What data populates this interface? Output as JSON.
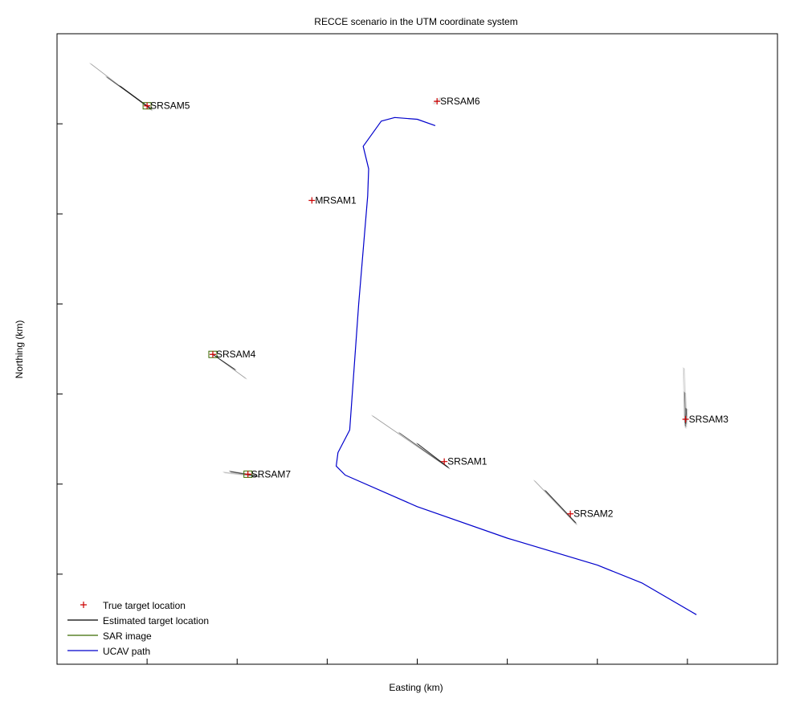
{
  "chart_data": {
    "type": "scatter",
    "title": "RECCE scenario in the UTM coordinate system",
    "xlabel": "Easting (km)",
    "ylabel": "Northing (km)",
    "xlim": [
      0,
      8
    ],
    "ylim": [
      0,
      7
    ],
    "grid": false,
    "tick_labels_shown": false,
    "legend_placement": "bottom-left",
    "legend": [
      {
        "key": "true",
        "label": "True target location",
        "color": "#cc0000",
        "marker": "+"
      },
      {
        "key": "est",
        "label": "Estimated target location",
        "color": "#000000",
        "marker": "line"
      },
      {
        "key": "sar",
        "label": "SAR image",
        "color": "#3a6a00",
        "marker": "line"
      },
      {
        "key": "ucav",
        "label": "UCAV path",
        "color": "#0000cc",
        "marker": "line"
      }
    ],
    "targets": [
      {
        "name": "SRSAM5",
        "x": 1.0,
        "y": 6.2,
        "sar": true,
        "streaks": [
          [
            [
              -0.63,
              0.47
            ],
            [
              0.05,
              -0.05
            ]
          ],
          [
            [
              -0.45,
              0.32
            ],
            [
              0.05,
              -0.04
            ]
          ],
          [
            [
              -0.3,
              0.22
            ],
            [
              0.04,
              -0.03
            ]
          ]
        ]
      },
      {
        "name": "SRSAM6",
        "x": 4.22,
        "y": 6.25,
        "sar": false,
        "streaks": [
          [
            [
              0.05,
              0.04
            ],
            [
              -0.04,
              -0.03
            ]
          ]
        ]
      },
      {
        "name": "MRSAM1",
        "x": 2.83,
        "y": 5.15,
        "sar": false,
        "streaks": []
      },
      {
        "name": "SRSAM4",
        "x": 1.73,
        "y": 3.44,
        "sar": true,
        "streaks": [
          [
            [
              0.0,
              0.0
            ],
            [
              0.37,
              -0.27
            ]
          ],
          [
            [
              0.0,
              0.0
            ],
            [
              0.25,
              -0.17
            ]
          ]
        ]
      },
      {
        "name": "SRSAM7",
        "x": 2.12,
        "y": 2.11,
        "sar": true,
        "streaks": [
          [
            [
              -0.27,
              0.02
            ],
            [
              0.15,
              -0.03
            ]
          ],
          [
            [
              -0.2,
              0.03
            ],
            [
              0.1,
              -0.02
            ]
          ]
        ]
      },
      {
        "name": "SRSAM1",
        "x": 4.3,
        "y": 2.25,
        "sar": false,
        "streaks": [
          [
            [
              -0.8,
              0.51
            ],
            [
              0.06,
              -0.08
            ]
          ],
          [
            [
              -0.5,
              0.32
            ],
            [
              0.05,
              -0.07
            ]
          ],
          [
            [
              -0.3,
              0.2
            ],
            [
              0.04,
              -0.06
            ]
          ]
        ]
      },
      {
        "name": "SRSAM2",
        "x": 5.7,
        "y": 1.67,
        "sar": false,
        "streaks": [
          [
            [
              -0.4,
              0.37
            ],
            [
              0.07,
              -0.12
            ]
          ],
          [
            [
              -0.28,
              0.26
            ],
            [
              0.06,
              -0.1
            ]
          ]
        ]
      },
      {
        "name": "SRSAM3",
        "x": 6.98,
        "y": 2.72,
        "sar": false,
        "streaks": [
          [
            [
              -0.02,
              0.57
            ],
            [
              0.0,
              -0.1
            ]
          ],
          [
            [
              -0.01,
              0.3
            ],
            [
              0.0,
              -0.08
            ]
          ],
          [
            [
              0.01,
              0.12
            ],
            [
              0.0,
              -0.05
            ]
          ]
        ]
      }
    ],
    "ucav_path": [
      [
        4.2,
        5.98
      ],
      [
        4.0,
        6.05
      ],
      [
        3.75,
        6.07
      ],
      [
        3.6,
        6.03
      ],
      [
        3.4,
        5.75
      ],
      [
        3.46,
        5.5
      ],
      [
        3.45,
        5.2
      ],
      [
        3.35,
        4.0
      ],
      [
        3.25,
        2.6
      ],
      [
        3.12,
        2.35
      ],
      [
        3.1,
        2.2
      ],
      [
        3.2,
        2.1
      ],
      [
        4.0,
        1.75
      ],
      [
        5.0,
        1.4
      ],
      [
        6.0,
        1.1
      ],
      [
        6.5,
        0.9
      ],
      [
        7.1,
        0.55
      ]
    ]
  }
}
